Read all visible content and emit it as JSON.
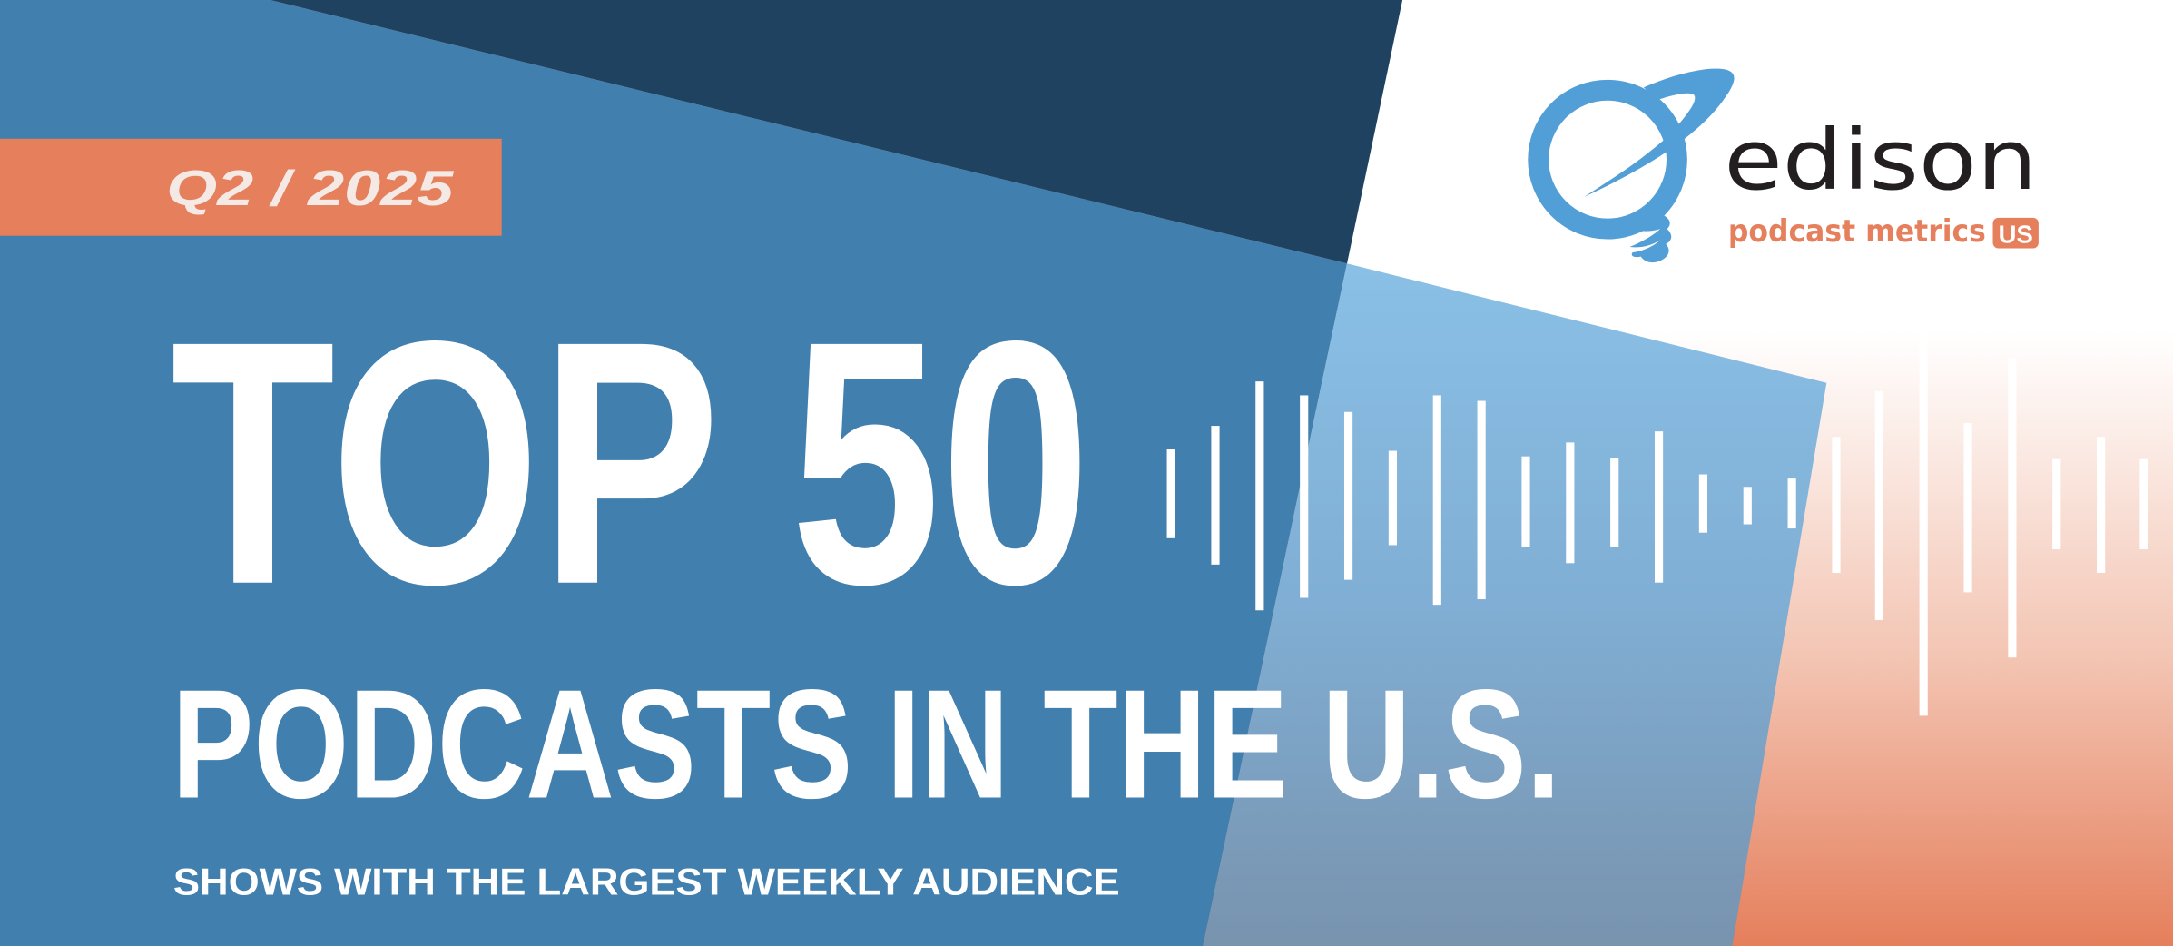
{
  "banner": {
    "period": "Q2 / 2025",
    "headline": "TOP 50",
    "subheadline": "PODCASTS IN THE U.S.",
    "tagline": "SHOWS WITH THE LARGEST WEEKLY AUDIENCE"
  },
  "logo": {
    "wordmark": "edison",
    "product": "podcast metrics",
    "badge": "US"
  },
  "colors": {
    "blue": "#417fae",
    "navy": "#1f4260",
    "light_blue": "#86bce2",
    "orange": "#e57f5c",
    "logo_blue": "#529ed6",
    "logo_black": "#231f20"
  },
  "icons": {
    "logo_mark": "lightbulb-orbit-icon",
    "waveform": "audio-waveform-icon"
  }
}
